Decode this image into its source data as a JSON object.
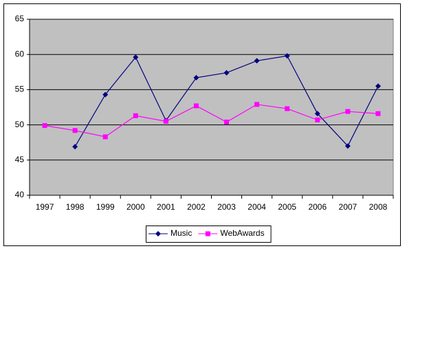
{
  "chart_data": {
    "type": "line",
    "categories": [
      "1997",
      "1998",
      "1999",
      "2000",
      "2001",
      "2002",
      "2003",
      "2004",
      "2005",
      "2006",
      "2007",
      "2008"
    ],
    "series": [
      {
        "name": "Music",
        "color": "#000080",
        "marker": "diamond",
        "values": [
          null,
          46.9,
          54.3,
          59.6,
          50.6,
          56.7,
          57.4,
          59.1,
          59.8,
          51.6,
          47.0,
          55.5
        ]
      },
      {
        "name": "WebAwards",
        "color": "#ff00ff",
        "marker": "square",
        "values": [
          49.9,
          49.2,
          48.3,
          51.3,
          50.5,
          52.7,
          50.4,
          52.9,
          52.3,
          50.7,
          51.9,
          51.6
        ]
      }
    ],
    "ylim": [
      40,
      65
    ],
    "yticks": [
      40,
      45,
      50,
      55,
      60,
      65
    ],
    "grid": true,
    "plot_background": "#c0c0c0",
    "legend": "bottom"
  }
}
